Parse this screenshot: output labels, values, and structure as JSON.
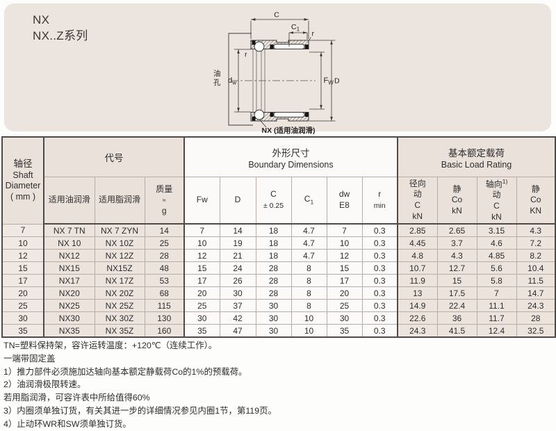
{
  "page": {
    "title_line1": "NX",
    "title_line2": "NX..Z系列"
  },
  "colors": {
    "panel_bg": "#ece4df",
    "cell_beige": "#ece3dd",
    "cell_white": "#fbfaf8",
    "border_dark": "#4e4a47"
  },
  "drawing": {
    "c": "C",
    "c1_main": "C",
    "c1_sub": "1",
    "r_top": "r",
    "r_inner": "r",
    "oil_1": "油",
    "oil_2": "孔",
    "dw_main": "d",
    "dw_sub": "w",
    "fw_main": "F",
    "fw_sub": "W",
    "dia": "D",
    "caption": "NX (适用油润滑)"
  },
  "table": {
    "shaft_header": {
      "zh": "轴径",
      "en1": "Shaft",
      "en2": "Diameter",
      "en3": "( mm )"
    },
    "groups": {
      "code_zh": "代号",
      "dims_zh": "外形尺寸",
      "dims_en": "Boundary Dimensions",
      "load_zh": "基本额定载荷",
      "load_en": "Basic Load Rating"
    },
    "sub": {
      "oil": "适用油润滑",
      "grease": "适用脂润滑",
      "mass_zh": "质量",
      "mass_approx": "≈",
      "mass_unit": "g",
      "fw": "Fw",
      "d": "D",
      "c": "C",
      "c_tol": "± 0.25",
      "c1_main": "C",
      "c1_sub": "1",
      "dw": "dw",
      "dw_fit": "E8",
      "r": "r",
      "r_min": "min",
      "radial_l1": "径向",
      "radial_l2": "动",
      "radial_l3": "C",
      "radial_l4": "kN",
      "static1_l1": "静",
      "static1_l2": "Co",
      "static1_l3": "kN",
      "axial_l1": "轴向",
      "axial_sup": "1)",
      "axial_l2": "动",
      "axial_l3": "C",
      "axial_l4": "kN",
      "static2_l1": "静",
      "static2_l2": "Co",
      "static2_l3": "KN"
    },
    "rows": [
      [
        "7",
        "NX 7 TN",
        "NX 7 ZYN",
        "14",
        "7",
        "14",
        "18",
        "4.7",
        "7",
        "0.3",
        "2.85",
        "2.65",
        "3.15",
        "4.3"
      ],
      [
        "10",
        "NX 10",
        "NX 10Z",
        "25",
        "10",
        "19",
        "18",
        "4.7",
        "10",
        "0.3",
        "4.45",
        "3.7",
        "4.6",
        "7.2"
      ],
      [
        "12",
        "NX12",
        "NX 12Z",
        "28",
        "12",
        "21",
        "18",
        "4.7",
        "12",
        "0.3",
        "4.8",
        "4.3",
        "4.85",
        "8.2"
      ],
      [
        "15",
        "NX15",
        "NX15Z",
        "48",
        "15",
        "24",
        "28",
        "8",
        "15",
        "0.3",
        "10.7",
        "12.7",
        "5.6",
        "10.4"
      ],
      [
        "17",
        "NX17",
        "NX 17Z",
        "53",
        "17",
        "26",
        "28",
        "8",
        "17",
        "0.3",
        "11.9",
        "15",
        "5.8",
        "11.5"
      ],
      [
        "20",
        "NX20",
        "NX 20Z",
        "68",
        "20",
        "30",
        "28",
        "8",
        "20",
        "0.3",
        "13",
        "17.5",
        "7",
        "14.7"
      ],
      [
        "25",
        "NX25",
        "NX 25Z",
        "115",
        "25",
        "37",
        "30",
        "8",
        "25",
        "0.3",
        "14.9",
        "22.4",
        "11.1",
        "24.3"
      ],
      [
        "30",
        "NX30",
        "NX 30Z",
        "130",
        "30",
        "42",
        "30",
        "10",
        "30",
        "0.3",
        "22.6",
        "36",
        "11.7",
        "28"
      ],
      [
        "35",
        "NX35",
        "NX 35Z",
        "160",
        "35",
        "47",
        "30",
        "10",
        "35",
        "0.3",
        "24.3",
        "41.5",
        "12.4",
        "32.5"
      ]
    ]
  },
  "notes": [
    "TN=塑料保持架，容许运转温度：+120℃（连续工作）。",
    "一端带固定盖",
    "1）推力部件必须施加达轴向基本额定静载荷Co的1%的预载荷。",
    "2）油润滑极限转速。",
    "若用脂润滑，可容许表中所给值得60%",
    "3）内圈须单独订货，有关其进一步的详细情况参见内圈1节，第119页。",
    "4）止动环WR和SW须单独订货。"
  ]
}
